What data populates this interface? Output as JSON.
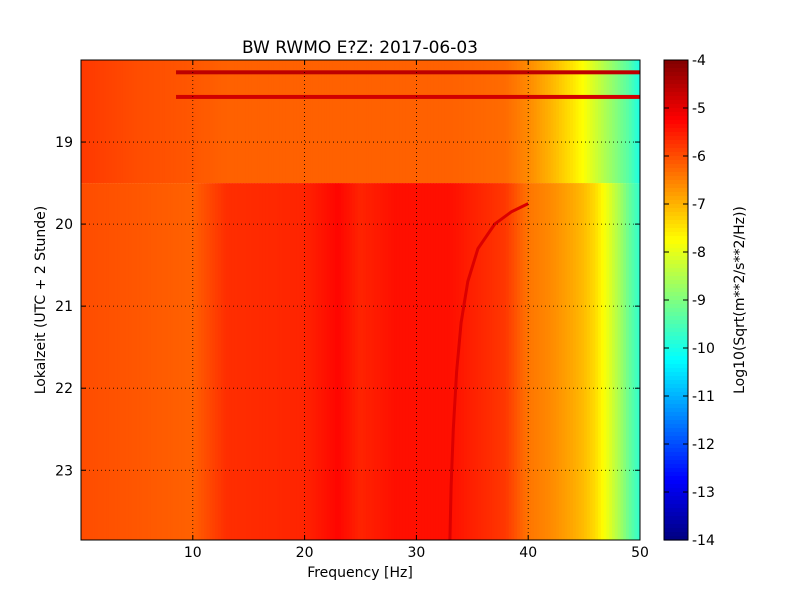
{
  "chart_data": {
    "type": "heatmap",
    "title": "BW RWMO E?Z: 2017-06-03",
    "xlabel": "Frequency [Hz]",
    "ylabel": "Lokalzeit (UTC + 2 Stunde)",
    "xlim": [
      0,
      50
    ],
    "ylim_top_to_bottom": [
      18.0,
      23.85
    ],
    "x_tick_labels": [
      "10",
      "20",
      "30",
      "40",
      "50"
    ],
    "x_tick_values": [
      10,
      20,
      30,
      40,
      50
    ],
    "y_tick_labels": [
      "19",
      "20",
      "21",
      "22",
      "23"
    ],
    "y_tick_values": [
      19,
      20,
      21,
      22,
      23
    ],
    "grid": true,
    "colormap": "jet",
    "colorbar": {
      "label": "Log10(Sqrt(m**2/s**2/Hz))",
      "range": [
        -14,
        -4
      ],
      "tick_labels": [
        "-4",
        "-5",
        "-6",
        "-7",
        "-8",
        "-9",
        "-10",
        "-11",
        "-12",
        "-13",
        "-14"
      ],
      "tick_values": [
        -4,
        -5,
        -6,
        -7,
        -8,
        -9,
        -10,
        -11,
        -12,
        -13,
        -14
      ]
    },
    "frequency_profile": {
      "frequency_hz": [
        0,
        5,
        10,
        13,
        20,
        23,
        25,
        28,
        33,
        38,
        40,
        42,
        44,
        45,
        46,
        47,
        48,
        49,
        50
      ],
      "before_19_5h": [
        -5.8,
        -6.0,
        -6.1,
        -6.2,
        -6.2,
        -6.2,
        -6.2,
        -6.2,
        -6.2,
        -6.3,
        -6.6,
        -7.0,
        -7.5,
        -7.8,
        -8.2,
        -8.6,
        -9.0,
        -9.4,
        -10.0
      ],
      "after_19_5h": [
        -6.0,
        -6.1,
        -6.2,
        -5.7,
        -5.6,
        -5.3,
        -5.6,
        -5.4,
        -5.4,
        -5.8,
        -6.4,
        -6.6,
        -6.9,
        -7.1,
        -7.4,
        -7.9,
        -8.5,
        -9.2,
        -9.8
      ]
    },
    "features": [
      {
        "time_h": 18.15,
        "from_hz": 8.5,
        "to_hz": 50,
        "value": -4.6
      },
      {
        "time_h": 18.45,
        "from_hz": 8.5,
        "to_hz": 50,
        "value": -4.8
      },
      {
        "time_h": 19.5,
        "description_value": "step change in spectrum",
        "value": -6.0
      }
    ],
    "drifting_line": {
      "frequency_hz": [
        40.0,
        38.5,
        37.0,
        35.5,
        34.6,
        34.0,
        33.6,
        33.3,
        33.1,
        33.0
      ],
      "time_h": [
        19.75,
        19.85,
        20.0,
        20.3,
        20.7,
        21.2,
        21.8,
        22.5,
        23.2,
        23.85
      ],
      "value": -4.9
    }
  }
}
